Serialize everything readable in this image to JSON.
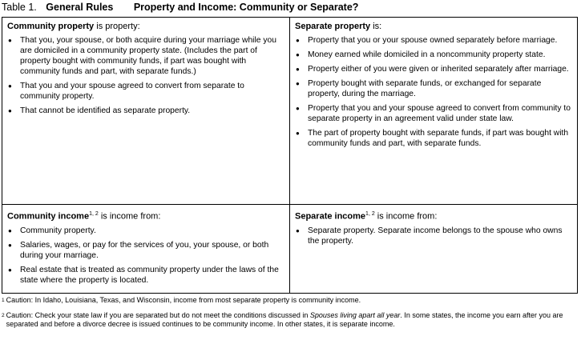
{
  "title": {
    "label": "Table 1.",
    "name": "General Rules",
    "subtitle": "Property and Income: Community or Separate?"
  },
  "table": {
    "cells": [
      {
        "heading": "Community property",
        "heading_rest": "is property:",
        "items": [
          "That you, your spouse, or both acquire during your marriage while you are domiciled in a community property state. (Includes the part of property bought with community funds, if part was bought with community funds and part, with separate funds.)",
          "That you and your spouse agreed to convert from separate to community property.",
          "That cannot be identified as separate property."
        ]
      },
      {
        "heading": "Separate property",
        "heading_rest": "is:",
        "items": [
          "Property that you or your spouse owned separately before marriage.",
          "Money earned while domiciled in a noncommunity property state.",
          "Property either of you were given or inherited separately after marriage.",
          "Property bought with separate funds, or exchanged for separate property, during the marriage.",
          "Property that you and your spouse agreed to convert from community to separate property in an agreement valid under state law.",
          "The part of property bought with separate funds, if part was bought with community funds and part, with separate funds."
        ]
      },
      {
        "heading": "Community income",
        "heading_sup": "1, 2",
        "heading_rest": "is income from:",
        "items": [
          "Community property.",
          "Salaries, wages, or pay for the services of you, your spouse, or both during your marriage.",
          "Real estate that is treated as community property under the laws of the state where the property is located."
        ]
      },
      {
        "heading": "Separate income",
        "heading_sup": "1, 2",
        "heading_rest": "is income from:",
        "items": [
          "Separate property. Separate income belongs to the spouse who owns the property."
        ]
      }
    ]
  },
  "footnotes": [
    {
      "mark": "1",
      "text": "Caution: In Idaho, Louisiana, Texas, and Wisconsin, income from most separate property is community income."
    },
    {
      "mark": "2",
      "text": "Caution: Check your state law if you are separated but do not meet the conditions discussed in",
      "emphasis": "Spouses living apart all year",
      "text_after": ". In some states, the income you earn after you are separated and before a divorce decree is issued continues to be community income. In other states, it is separate income."
    }
  ]
}
